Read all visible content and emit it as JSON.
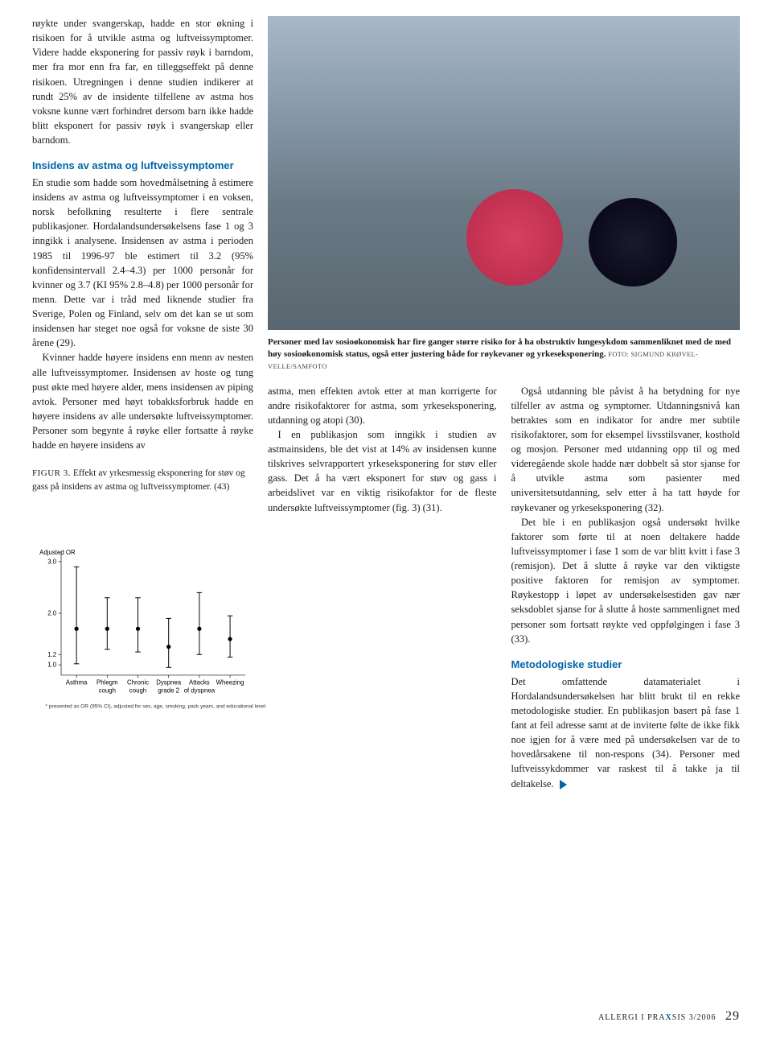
{
  "left": {
    "p1": "røykte under svangerskap, hadde en stor økning i risikoen for å utvikle astma og luftveissymptomer. Videre hadde eksponering for passiv røyk i barndom, mer fra mor enn fra far, en tilleggseffekt på denne risikoen. Utregningen i denne studien indikerer at rundt 25% av de insidente tilfellene av astma hos voksne kunne vært forhindret dersom barn ikke hadde blitt eksponert for passiv røyk i svangerskap eller barndom.",
    "sub1": "Insidens av astma og luftveissymptomer",
    "p2": "En studie som hadde som hovedmålsetning å estimere insidens av astma og luftveissymptomer i en voksen, norsk befolkning resulterte i flere sentrale publikasjoner. Hordalandsundersøkelsens fase 1 og 3 inngikk i analysene. Insidensen av astma i perioden 1985 til 1996-97 ble estimert til 3.2 (95% konfidensintervall 2.4–4.3) per 1000 personår for kvinner og 3.7 (KI 95% 2.8–4.8) per 1000 personår for menn. Dette var i tråd med liknende studier fra Sverige, Polen og Finland, selv om det kan se ut som insidensen har steget noe også for voksne de siste 30 årene (29).",
    "p3": "Kvinner hadde høyere insidens enn menn av nesten alle luftveissymptomer. Insidensen av hoste og tung pust økte med høyere alder, mens insidensen av piping avtok. Personer med høyt tobakksforbruk hadde en høyere insidens av alle undersøkte luftveissymptomer. Personer som begynte å røyke eller fortsatte å røyke hadde en høyere insidens av"
  },
  "photo_caption": {
    "bold1": "Personer med lav sosioøkonomisk har fire ganger større risiko for å ha obstruktiv lungesykdom sammenliknet med de med høy sosioøkonomisk status, også etter justering både for røykevaner og yrkeseksponering.",
    "credit": "FOTO: SIGMUND KRØVEL-VELLE/SAMFOTO"
  },
  "mid": {
    "p1": "astma, men effekten avtok etter at man korrigerte for andre risikofaktorer for astma, som yrkeseksponering, utdanning og atopi (30).",
    "p2": "I en publikasjon som inngikk i studien av astmainsidens, ble det vist at 14% av insidensen kunne tilskrives selvrapportert yrkeseksponering for støv eller gass. Det å ha vært eksponert for støv og gass i arbeidslivet var en viktig risikofaktor for de fleste undersøkte luftveissymptomer (fig. 3) (31)."
  },
  "right": {
    "p1": "Også utdanning ble påvist å ha betydning for nye tilfeller av astma og symptomer. Utdanningsnivå kan betraktes som en indikator for andre mer subtile risikofaktorer, som for eksempel livsstilsvaner, kosthold og mosjon. Personer med utdanning opp til og med videregående skole hadde nær dobbelt så stor sjanse for å utvikle astma som pasienter med universitetsutdanning, selv etter å ha tatt høyde for røykevaner og yrkeseksponering (32).",
    "p2": "Det ble i en publikasjon også undersøkt hvilke faktorer som førte til at noen deltakere hadde luftveissymptomer i fase 1 som de var blitt kvitt i fase 3 (remisjon). Det å slutte å røyke var den viktigste positive faktoren for remisjon av symptomer. Røykestopp i løpet av undersøkelsestiden gav nær seksdoblet sjanse for å slutte å hoste sammenlignet med personer som fortsatt røykte ved oppfølgingen i fase 3 (33).",
    "sub1": "Metodologiske studier",
    "p3": "Det omfattende datamaterialet i Hordalandsundersøkelsen har blitt brukt til en rekke metodologiske studier. En publikasjon basert på fase 1 fant at feil adresse samt at de inviterte følte de ikke fikk noe igjen for å være med på undersøkelsen var de to hovedårsakene til non-respons (34). Personer med luftveissykdommer var raskest til å takke ja til deltakelse."
  },
  "figure3": {
    "label": "FIGUR 3.",
    "caption": "Effekt av yrkesmessig eksponering for støv og gass på insidens av astma og luftveissymptomer. (43)",
    "footnote": "* presented as OR (95% CI), adjusted for sex, age, smoking, pack years, and educational level",
    "y_title": "Adjusted OR",
    "y_ticks": [
      1.0,
      1.2,
      2.0,
      3.0
    ],
    "categories": [
      "Asthma",
      "Phlegm cough",
      "Chronic cough",
      "Dyspnea grade 2",
      "Attacks of dyspnea",
      "Wheezing"
    ],
    "points": [
      {
        "or": 1.7,
        "lo": 1.02,
        "hi": 2.9
      },
      {
        "or": 1.7,
        "lo": 1.3,
        "hi": 2.3
      },
      {
        "or": 1.7,
        "lo": 1.25,
        "hi": 2.3
      },
      {
        "or": 1.35,
        "lo": 0.95,
        "hi": 1.9
      },
      {
        "or": 1.7,
        "lo": 1.2,
        "hi": 2.4
      },
      {
        "or": 1.5,
        "lo": 1.15,
        "hi": 1.95
      }
    ],
    "colors": {
      "marker": "#000000",
      "axis": "#000000",
      "bg": "#ffffff"
    },
    "font_family": "Arial",
    "font_size_axis": 12,
    "font_size_foot": 10,
    "marker_radius": 4,
    "whisker_width": 1.5
  },
  "footer": {
    "mag": "ALLERGI I PRA",
    "x": "X",
    "sis": "SIS",
    "issue": "3/2006",
    "page": "29"
  }
}
